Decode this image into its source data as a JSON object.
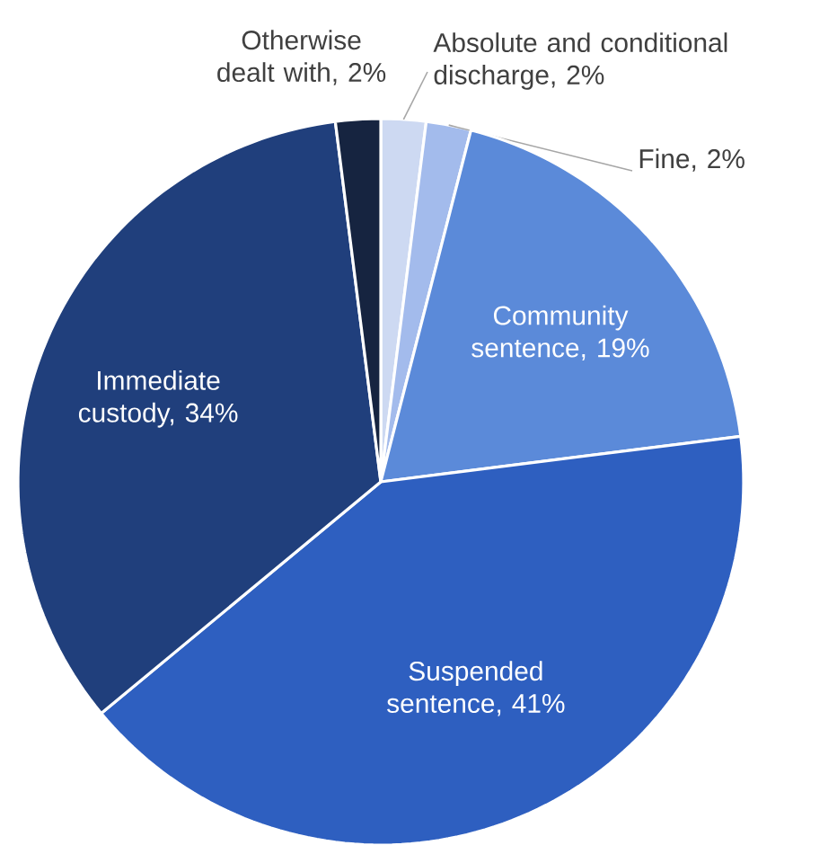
{
  "chart_data": {
    "type": "pie",
    "categories": [
      "Absolute and conditional discharge, 2%",
      "Fine, 2%",
      "Community sentence, 19%",
      "Suspended sentence, 41%",
      "Immediate custody, 34%",
      "Otherwise dealt with, 2%"
    ],
    "values": [
      2,
      2,
      19,
      41,
      34,
      2
    ],
    "colors": [
      "#cdd9f2",
      "#a3bbec",
      "#5b8ad9",
      "#2e5fc0",
      "#203f7c",
      "#162440"
    ]
  }
}
